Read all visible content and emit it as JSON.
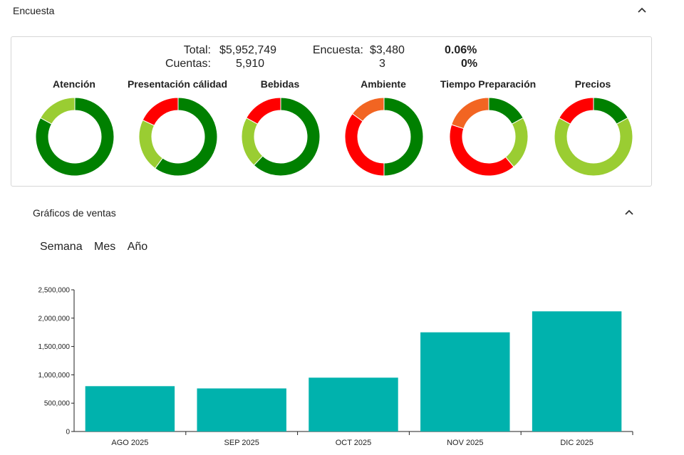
{
  "encuesta": {
    "title": "Encuesta",
    "chevron_icon": "chevron-up-icon",
    "summary": {
      "total_label": "Total:",
      "total_value": "$5,952,749",
      "cuentas_label": "Cuentas:",
      "cuentas_value": "5,910",
      "encuesta_label": "Encuesta:",
      "encuesta_value": "$3,480",
      "encuesta_count": "3",
      "pct_amount": "0.06%",
      "pct_count": "0%"
    },
    "colors": {
      "dark_green": "#008000",
      "light_green": "#9acd32",
      "red": "#ff0000",
      "orange": "#f26522"
    },
    "donuts": [
      {
        "title": "Atención",
        "segments": [
          {
            "color": "#008000",
            "value": 83
          },
          {
            "color": "#9acd32",
            "value": 17
          }
        ]
      },
      {
        "title": "Presentación cálidad",
        "segments": [
          {
            "color": "#008000",
            "value": 60
          },
          {
            "color": "#9acd32",
            "value": 22
          },
          {
            "color": "#ff0000",
            "value": 18
          }
        ]
      },
      {
        "title": "Bebidas",
        "segments": [
          {
            "color": "#008000",
            "value": 62
          },
          {
            "color": "#9acd32",
            "value": 21
          },
          {
            "color": "#ff0000",
            "value": 17
          }
        ]
      },
      {
        "title": "Ambiente",
        "segments": [
          {
            "color": "#008000",
            "value": 50
          },
          {
            "color": "#ff0000",
            "value": 35
          },
          {
            "color": "#f26522",
            "value": 15
          }
        ]
      },
      {
        "title": "Tiempo Preparación",
        "segments": [
          {
            "color": "#008000",
            "value": 17
          },
          {
            "color": "#9acd32",
            "value": 22
          },
          {
            "color": "#ff0000",
            "value": 41
          },
          {
            "color": "#f26522",
            "value": 20
          }
        ]
      },
      {
        "title": "Precios",
        "segments": [
          {
            "color": "#008000",
            "value": 17
          },
          {
            "color": "#9acd32",
            "value": 66
          },
          {
            "color": "#ff0000",
            "value": 17
          }
        ]
      }
    ]
  },
  "ventas": {
    "title": "Gráficos de ventas",
    "chevron_icon": "chevron-up-icon",
    "tabs": [
      "Semana",
      "Mes",
      "Año"
    ]
  },
  "chart_data": {
    "type": "bar",
    "categories": [
      "AGO 2025",
      "SEP 2025",
      "OCT 2025",
      "NOV 2025",
      "DIC 2025"
    ],
    "values": [
      800000,
      760000,
      950000,
      1750000,
      2120000
    ],
    "ylim": [
      0,
      2500000
    ],
    "yticks": [
      0,
      500000,
      1000000,
      1500000,
      2000000,
      2500000
    ],
    "ytick_labels": [
      "0",
      "500,000",
      "1,000,000",
      "1,500,000",
      "2,000,000",
      "2,500,000"
    ],
    "bar_color": "#00b2ad",
    "grid": false,
    "legend": "none"
  }
}
